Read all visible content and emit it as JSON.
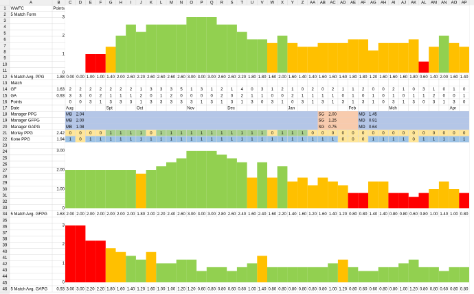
{
  "columns": [
    "A",
    "B",
    "C",
    "D",
    "E",
    "F",
    "G",
    "H",
    "I",
    "J",
    "K",
    "L",
    "M",
    "N",
    "O",
    "P",
    "Q",
    "R",
    "S",
    "T",
    "U",
    "V",
    "W",
    "X",
    "Y",
    "Z",
    "AA",
    "AB",
    "AC",
    "AD",
    "AE",
    "AF",
    "AG",
    "AH",
    "AI",
    "AJ",
    "AK",
    "AL",
    "AM",
    "AN",
    "AO",
    "AP"
  ],
  "rows": [
    1,
    2,
    3,
    4,
    5,
    6,
    7,
    8,
    9,
    10,
    11,
    12,
    13,
    14,
    15,
    16,
    17,
    18,
    19,
    20,
    21,
    22,
    23,
    24,
    25,
    26,
    27,
    28,
    29,
    30,
    31,
    32,
    33,
    34,
    35,
    36,
    37,
    38,
    39,
    40,
    41,
    42,
    43,
    44,
    45,
    46
  ],
  "a_column": [
    "WWFC",
    "5 Match Form",
    null,
    null,
    null,
    null,
    null,
    null,
    null,
    null,
    null,
    "5 Match Avg. PPG",
    "Match",
    "GF",
    "GA",
    "Points",
    "Date",
    "Manager PPG",
    "Manager GFPG",
    "Manager GAPG",
    "Morley PPG",
    "Kone PPG",
    null,
    null,
    null,
    null,
    null,
    null,
    null,
    null,
    null,
    null,
    null,
    "5 Match Avg. GFPG",
    null,
    null,
    null,
    null,
    null,
    null,
    null,
    null,
    null,
    null,
    null,
    "5 Match Avg. GAPG"
  ],
  "b_column": [
    "Points",
    null,
    null,
    null,
    null,
    null,
    null,
    null,
    null,
    null,
    null,
    1.88,
    null,
    1.63,
    0.93,
    null,
    null,
    null,
    null,
    null,
    2.42,
    1.94,
    null,
    null,
    null,
    null,
    null,
    null,
    null,
    null,
    null,
    null,
    null,
    1.63,
    null,
    null,
    null,
    null,
    null,
    null,
    null,
    null,
    null,
    null,
    null,
    0.93
  ],
  "gf": [
    2,
    2,
    2,
    2,
    2,
    2,
    2,
    1,
    3,
    3,
    3,
    5,
    1,
    3,
    1,
    2,
    1,
    4,
    0,
    3,
    1,
    2,
    1,
    0,
    2,
    0,
    2,
    1,
    1,
    2,
    0,
    0,
    2,
    1,
    0,
    3,
    1,
    0,
    1,
    0
  ],
  "ga": [
    3,
    3,
    0,
    2,
    1,
    1,
    1,
    2,
    0,
    1,
    2,
    0,
    0,
    0,
    0,
    2,
    0,
    2,
    1,
    1,
    0,
    0,
    2,
    1,
    1,
    1,
    1,
    0,
    1,
    0,
    1,
    0,
    1,
    0,
    1,
    1,
    2,
    0,
    0,
    1
  ],
  "points": [
    0,
    0,
    3,
    1,
    3,
    3,
    3,
    1,
    3,
    3,
    3,
    3,
    3,
    1,
    3,
    1,
    3,
    1,
    3,
    0,
    3,
    1,
    0,
    3,
    1,
    3,
    1,
    3,
    1,
    3,
    1,
    0,
    3,
    1,
    3,
    0,
    3,
    1,
    3,
    0
  ],
  "dates": [
    "Aug",
    null,
    null,
    null,
    "Spt",
    null,
    null,
    "Oct",
    null,
    null,
    null,
    null,
    "Nov",
    null,
    null,
    null,
    "Dec",
    null,
    null,
    null,
    null,
    null,
    "Jan",
    null,
    null,
    null,
    null,
    null,
    "Feb",
    null,
    null,
    null,
    "Mch",
    null,
    null,
    null,
    null,
    null,
    "Apr",
    null
  ],
  "manager_colors": {
    "MB": "#b4c6e7",
    "SG": "#f8cbad",
    "MD": "#b4c6e7"
  },
  "manager": [
    {
      "values": [
        "MB",
        "2.04",
        null,
        null,
        null,
        null,
        null,
        null,
        null,
        null,
        null,
        null,
        null,
        null,
        null,
        null,
        null,
        null,
        null,
        null,
        null,
        null,
        null,
        null,
        null,
        "SG",
        "2.00",
        null,
        null,
        "MD",
        "1.45",
        null,
        null,
        null,
        null,
        null,
        null,
        null,
        null,
        null
      ]
    },
    {
      "values": [
        "MB",
        "2.00",
        null,
        null,
        null,
        null,
        null,
        null,
        null,
        null,
        null,
        null,
        null,
        null,
        null,
        null,
        null,
        null,
        null,
        null,
        null,
        null,
        null,
        null,
        null,
        "SG",
        "1.25",
        null,
        null,
        "MD",
        "0.91",
        null,
        null,
        null,
        null,
        null,
        null,
        null,
        null,
        null
      ]
    },
    {
      "values": [
        "MB",
        "1.08",
        null,
        null,
        null,
        null,
        null,
        null,
        null,
        null,
        null,
        null,
        null,
        null,
        null,
        null,
        null,
        null,
        null,
        null,
        null,
        null,
        null,
        null,
        null,
        "SG",
        "0.75",
        null,
        null,
        "MD",
        "0.64",
        null,
        null,
        null,
        null,
        null,
        null,
        null,
        null,
        null
      ]
    }
  ],
  "morley": {
    "values": [
      0,
      0,
      0,
      0,
      1,
      1,
      1,
      1,
      0,
      1,
      1,
      1,
      1,
      1,
      1,
      1,
      1,
      1,
      1,
      1,
      0,
      1,
      1,
      1,
      0,
      0,
      0,
      0,
      0,
      0,
      0,
      0,
      0,
      0,
      0,
      0,
      0,
      0,
      0,
      0
    ],
    "color_on": "#a9d08e",
    "color_off": "#ffe699"
  },
  "kone": {
    "values": [
      1,
      0,
      1,
      1,
      1,
      1,
      1,
      1,
      1,
      1,
      1,
      1,
      1,
      1,
      1,
      1,
      1,
      1,
      1,
      1,
      1,
      1,
      1,
      1,
      1,
      1,
      1,
      0,
      0,
      0,
      1,
      1,
      1,
      1,
      0,
      1,
      1,
      1,
      1,
      1
    ],
    "color_on": "#9dc3e6",
    "color_off": "#ffe699"
  },
  "chart_data": [
    {
      "type": "bar",
      "ylim": [
        0,
        3
      ],
      "yticks": [
        0,
        1,
        2,
        3
      ],
      "values": [
        0,
        0,
        1,
        1,
        1.4,
        2,
        2.6,
        2.2,
        2.6,
        2.6,
        2.6,
        2.6,
        3,
        3,
        3,
        2.6,
        2.6,
        2.2,
        1.8,
        1.8,
        1.6,
        2,
        1.6,
        1.4,
        1.4,
        1.6,
        1.6,
        1.6,
        1.8,
        1.8,
        1.2,
        1.6,
        1.6,
        1.6,
        1.8,
        0.6,
        1.4,
        2,
        1.6,
        1.4
      ],
      "value_labels": [
        "0.00",
        "0.00",
        "1.00",
        "1.00",
        "1.40",
        "2.00",
        "2.60",
        "2.20",
        "2.60",
        "2.60",
        "2.60",
        "2.60",
        "3.00",
        "3.00",
        "3.00",
        "2.60",
        "2.60",
        "2.20",
        "1.80",
        "1.80",
        "1.60",
        "2.00",
        "1.60",
        "1.40",
        "1.40",
        "1.60",
        "1.60",
        "1.60",
        "1.80",
        "1.80",
        "1.20",
        "1.60",
        "1.60",
        "1.60",
        "1.80",
        "0.60",
        "1.40",
        "2.00",
        "1.60",
        "1.40"
      ],
      "colors": [
        "#ff0000",
        "#ff0000",
        "#ff0000",
        "#ff0000",
        "#ffc000",
        "#92d050",
        "#92d050",
        "#92d050",
        "#92d050",
        "#92d050",
        "#92d050",
        "#92d050",
        "#92d050",
        "#92d050",
        "#92d050",
        "#92d050",
        "#92d050",
        "#92d050",
        "#92d050",
        "#92d050",
        "#ffc000",
        "#92d050",
        "#ffc000",
        "#ffc000",
        "#ffc000",
        "#ffc000",
        "#ffc000",
        "#ffc000",
        "#ffc000",
        "#ffc000",
        "#ffc000",
        "#ffc000",
        "#ffc000",
        "#ffc000",
        "#ffc000",
        "#ff0000",
        "#ffc000",
        "#92d050",
        "#ffc000",
        "#ffc000"
      ]
    },
    {
      "type": "bar",
      "ylim": [
        0,
        3
      ],
      "yticks": [
        0,
        {
          "value": 1,
          "label": "1.00"
        },
        {
          "value": 2,
          "label": "2.00"
        },
        {
          "value": 3,
          "label": "3.00"
        }
      ],
      "values": [
        2,
        2,
        2,
        2,
        2,
        2,
        2,
        1.8,
        2,
        2.2,
        2.4,
        2.6,
        3,
        3,
        3,
        2.8,
        2.6,
        2.4,
        1.6,
        2.4,
        1.6,
        2.2,
        1.4,
        1.6,
        1.2,
        1.6,
        1.4,
        1.2,
        0.8,
        0.8,
        1.4,
        1.4,
        0.8,
        0.8,
        0.6,
        0.8,
        1,
        1.4,
        1,
        0.8
      ],
      "value_labels": [
        "2.00",
        "2.00",
        "2.00",
        "2.00",
        "2.00",
        "2.00",
        "2.00",
        "1.80",
        "2.00",
        "2.20",
        "2.40",
        "2.60",
        "3.00",
        "3.00",
        "3.00",
        "2.80",
        "2.60",
        "2.40",
        "1.60",
        "2.40",
        "1.60",
        "2.20",
        "1.40",
        "1.60",
        "1.20",
        "1.60",
        "1.40",
        "1.20",
        "0.80",
        "0.80",
        "1.40",
        "1.40",
        "0.80",
        "0.80",
        "0.60",
        "0.80",
        "1.00",
        "1.40",
        "1.00",
        "0.80"
      ],
      "colors": [
        "#92d050",
        "#92d050",
        "#92d050",
        "#92d050",
        "#92d050",
        "#92d050",
        "#92d050",
        "#ffc000",
        "#92d050",
        "#92d050",
        "#92d050",
        "#92d050",
        "#92d050",
        "#92d050",
        "#92d050",
        "#92d050",
        "#92d050",
        "#92d050",
        "#ffc000",
        "#92d050",
        "#ffc000",
        "#92d050",
        "#ffc000",
        "#ffc000",
        "#ffc000",
        "#ffc000",
        "#ffc000",
        "#ffc000",
        "#ff0000",
        "#ff0000",
        "#ffc000",
        "#ffc000",
        "#ff0000",
        "#ff0000",
        "#ff0000",
        "#ff0000",
        "#ffc000",
        "#ffc000",
        "#ffc000",
        "#ff0000"
      ]
    },
    {
      "type": "bar",
      "ylim": [
        0,
        3
      ],
      "yticks": [
        0,
        1,
        2,
        3
      ],
      "values": [
        3,
        3,
        2.2,
        2.2,
        1.8,
        1.6,
        1.4,
        1.2,
        1.6,
        1,
        1,
        1.2,
        1.2,
        0.6,
        0.8,
        0.8,
        0.6,
        0.8,
        1,
        1.4,
        0.8,
        0.8,
        0.8,
        0.8,
        0.8,
        0.8,
        1,
        1.2,
        0.8,
        0.6,
        0.6,
        0.8,
        0.8,
        1,
        1.2,
        0.8,
        0.8,
        0.6,
        0.8,
        0.8
      ],
      "value_labels": [
        "3.00",
        "3.00",
        "2.20",
        "2.20",
        "1.80",
        "1.60",
        "1.40",
        "1.20",
        "1.60",
        "1.00",
        "1.00",
        "1.20",
        "1.20",
        "0.60",
        "0.80",
        "0.80",
        "0.60",
        "0.80",
        "1.00",
        "1.40",
        "0.80",
        "0.80",
        "0.80",
        "0.80",
        "0.80",
        "0.80",
        "1.00",
        "1.20",
        "0.80",
        "0.60",
        "0.60",
        "0.80",
        "0.80",
        "1.00",
        "1.20",
        "0.80",
        "0.80",
        "0.60",
        "0.80",
        "0.80"
      ],
      "colors": [
        "#ff0000",
        "#ff0000",
        "#ff0000",
        "#ff0000",
        "#ffc000",
        "#ffc000",
        "#92d050",
        "#92d050",
        "#ffc000",
        "#92d050",
        "#92d050",
        "#92d050",
        "#92d050",
        "#92d050",
        "#92d050",
        "#92d050",
        "#92d050",
        "#92d050",
        "#92d050",
        "#ffc000",
        "#92d050",
        "#92d050",
        "#92d050",
        "#92d050",
        "#92d050",
        "#92d050",
        "#92d050",
        "#ffc000",
        "#92d050",
        "#92d050",
        "#92d050",
        "#92d050",
        "#92d050",
        "#92d050",
        "#92d050",
        "#92d050",
        "#92d050",
        "#92d050",
        "#92d050",
        "#92d050"
      ]
    }
  ]
}
